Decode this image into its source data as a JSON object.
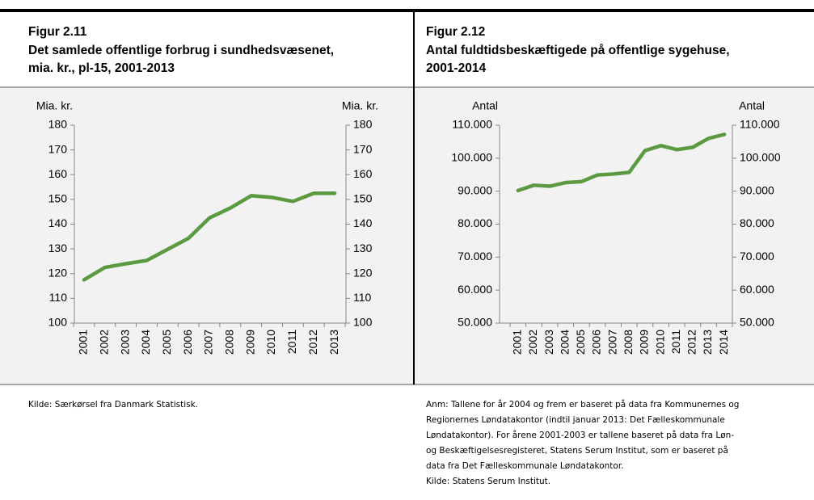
{
  "chart_data": [
    {
      "type": "line",
      "figure": "Figur 2.11",
      "title": [
        "Det samlede offentlige forbrug i sundhedsvæsenet,",
        "mia. kr., pl-15, 2001-2013"
      ],
      "y_label": "Mia. kr.",
      "y2_label": "Mia. kr.",
      "categories": [
        "2001",
        "2002",
        "2003",
        "2004",
        "2005",
        "2006",
        "2007",
        "2008",
        "2009",
        "2010",
        "2011",
        "2012",
        "2013"
      ],
      "values": [
        117.5,
        122.5,
        124,
        125.3,
        129.8,
        134.3,
        142.5,
        146.5,
        151.5,
        150.8,
        149.2,
        152.5,
        152.5
      ],
      "color": "#5b9a40",
      "ylim": [
        100,
        180
      ],
      "yticks": [
        100,
        110,
        120,
        130,
        140,
        150,
        160,
        170,
        180
      ],
      "notes": [
        "Kilde: Særkørsel fra Danmark Statistisk."
      ]
    },
    {
      "type": "line",
      "figure": "Figur 2.12",
      "title": [
        "Antal  fuldtidsbeskæftigede  på  offentlige  sygehuse,",
        "2001-2014"
      ],
      "y_label": "Antal",
      "y2_label": "Antal",
      "categories": [
        "2001",
        "2002",
        "2003",
        "2004",
        "2005",
        "2006",
        "2007",
        "2008",
        "2009",
        "2010",
        "2011",
        "2012",
        "2013",
        "2014"
      ],
      "values": [
        90200,
        91800,
        91500,
        92600,
        92900,
        94900,
        95200,
        95700,
        102300,
        103800,
        102600,
        103300,
        106000,
        107200
      ],
      "color": "#5b9a40",
      "ylim": [
        50000,
        110000
      ],
      "yticks": [
        {
          "value": 50000,
          "label": "50.000"
        },
        {
          "value": 60000,
          "label": "60.000"
        },
        {
          "value": 70000,
          "label": "70.000"
        },
        {
          "value": 80000,
          "label": "80.000"
        },
        {
          "value": 90000,
          "label": "90.000"
        },
        {
          "value": 100000,
          "label": "100.000"
        },
        {
          "value": 110000,
          "label": "110.000"
        }
      ],
      "notes": [
        "Anm: Tallene for år 2004 og frem er baseret på data fra Kommunernes og",
        "Regionernes Løndatakontor (indtil januar 2013: Det Fælleskommunale",
        "Løndatakontor). For årene 2001-2003 er tallene baseret på data fra Løn-",
        "og Beskæftigelsesregisteret, Statens Serum Institut, som er baseret på",
        "data fra Det Fælleskommunale Løndatakontor.",
        "Kilde: Statens Serum Institut."
      ]
    }
  ]
}
